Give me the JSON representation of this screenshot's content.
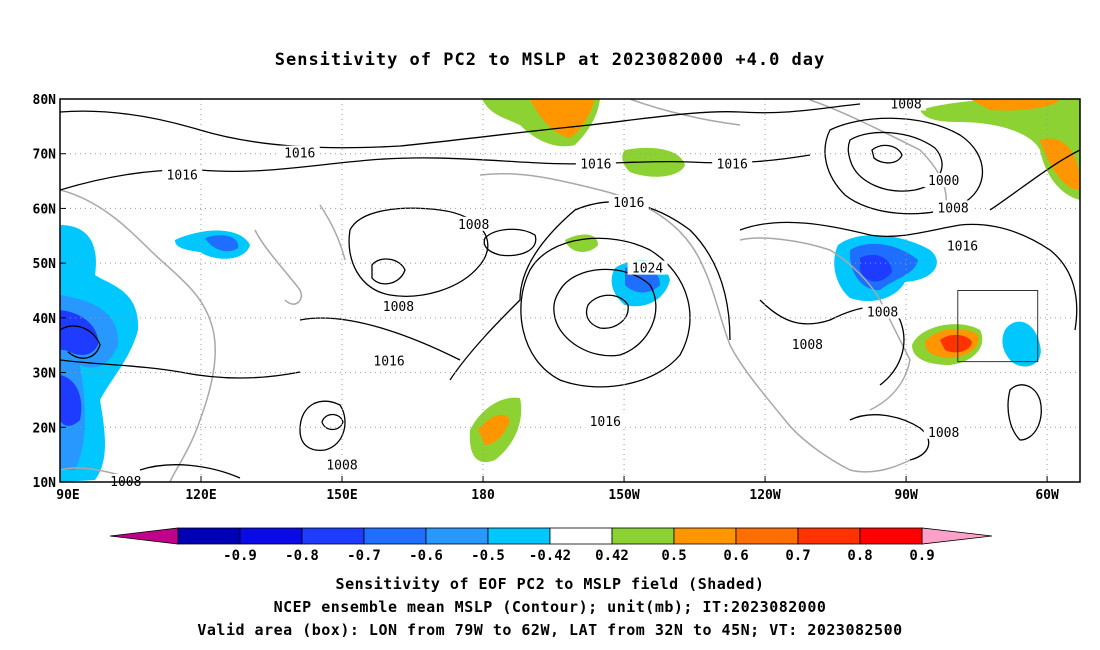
{
  "title": "Sensitivity of PC2 to MSLP at 2023082000 +4.0 day",
  "map": {
    "lat_labels": [
      "80N",
      "70N",
      "60N",
      "50N",
      "40N",
      "30N",
      "20N",
      "10N"
    ],
    "lon_labels": [
      "90E",
      "120E",
      "150E",
      "180",
      "150W",
      "120W",
      "90W",
      "60W"
    ],
    "contour_labels": [
      {
        "text": "1008",
        "lon": -90,
        "lat": 79
      },
      {
        "text": "1016",
        "lon": 141,
        "lat": 70
      },
      {
        "text": "1016",
        "lon": -156,
        "lat": 68
      },
      {
        "text": "1016",
        "lon": -127,
        "lat": 68
      },
      {
        "text": "1000",
        "lon": -82,
        "lat": 65
      },
      {
        "text": "1016",
        "lon": 116,
        "lat": 66
      },
      {
        "text": "1016",
        "lon": -149,
        "lat": 61
      },
      {
        "text": "1008",
        "lon": -80,
        "lat": 60
      },
      {
        "text": "1008",
        "lon": 178,
        "lat": 57
      },
      {
        "text": "1016",
        "lon": -78,
        "lat": 53
      },
      {
        "text": "1024",
        "lon": -145,
        "lat": 49
      },
      {
        "text": "1008",
        "lon": 162,
        "lat": 42
      },
      {
        "text": "1008",
        "lon": -95,
        "lat": 41
      },
      {
        "text": "1008",
        "lon": -111,
        "lat": 35
      },
      {
        "text": "1016",
        "lon": 160,
        "lat": 32
      },
      {
        "text": "1016",
        "lon": -154,
        "lat": 21
      },
      {
        "text": "1008",
        "lon": -82,
        "lat": 19
      },
      {
        "text": "1008",
        "lon": 150,
        "lat": 13
      },
      {
        "text": "1008",
        "lon": 104,
        "lat": 10
      }
    ],
    "valid_box": {
      "lon_min": -79,
      "lon_max": -62,
      "lat_min": 32,
      "lat_max": 45
    }
  },
  "colorbar": {
    "labels": [
      "-0.9",
      "-0.8",
      "-0.7",
      "-0.6",
      "-0.5",
      "-0.42",
      "0.42",
      "0.5",
      "0.6",
      "0.7",
      "0.8",
      "0.9"
    ],
    "colors": [
      "#0000b4",
      "#0a0ae6",
      "#1e3cff",
      "#1e6eff",
      "#2898ff",
      "#00c8ff",
      "#ffffff",
      "#8cd232",
      "#ff9600",
      "#ff6e00",
      "#ff3200",
      "#ff0000"
    ],
    "under_color": "#c0008a",
    "over_color": "#ffa0c8"
  },
  "captions": {
    "line1": "Sensitivity of EOF PC2 to MSLP field (Shaded)",
    "line2": "NCEP ensemble mean MSLP (Contour); unit(mb); IT:2023082000",
    "line3": "Valid area (box): LON from 79W to 62W, LAT from 32N to 45N; VT: 2023082500"
  }
}
